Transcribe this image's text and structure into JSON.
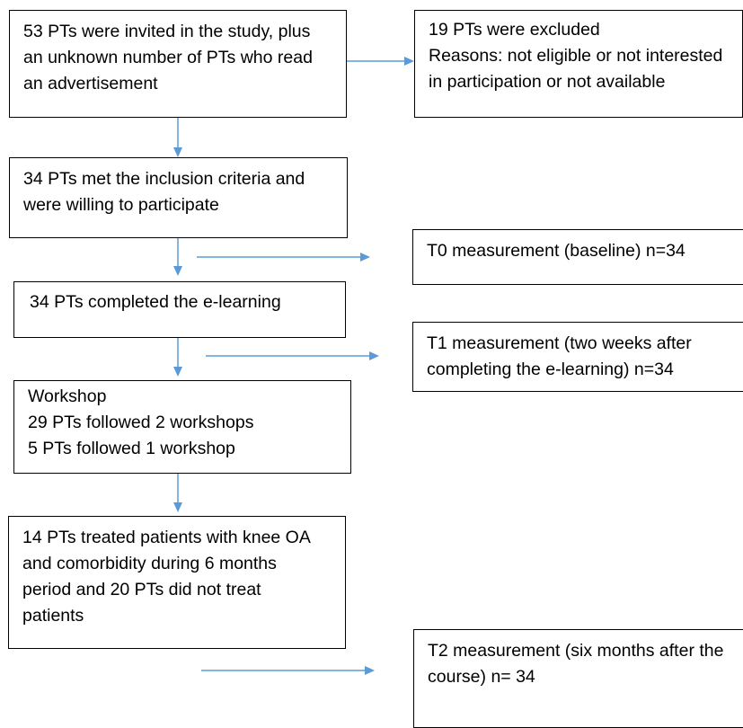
{
  "flowchart": {
    "invited": [
      "53 PTs were invited in the study, plus",
      "an unknown number of PTs who read",
      "an advertisement"
    ],
    "excluded": [
      "19 PTs were excluded",
      "Reasons: not eligible or not interested",
      "in participation or not available"
    ],
    "inclusion": [
      "34 PTs met the inclusion criteria and",
      "were willing to participate"
    ],
    "t0": [
      "T0 measurement (baseline) n=34"
    ],
    "elearning": [
      "34 PTs completed the e-learning"
    ],
    "t1": [
      "T1 measurement (two weeks after",
      "completing the e-learning) n=34"
    ],
    "workshop": [
      "Workshop",
      "29 PTs followed 2 workshops",
      "5 PTs followed 1 workshop"
    ],
    "treated": [
      "14 PTs treated patients with knee OA",
      "and comorbidity during 6 months",
      "period and 20 PTs did not treat",
      "patients"
    ],
    "t2": [
      "T2 measurement (six months after the",
      "course) n= 34"
    ]
  },
  "colors": {
    "arrow": "#5b9bd5",
    "border": "#000000",
    "background": "#ffffff"
  }
}
